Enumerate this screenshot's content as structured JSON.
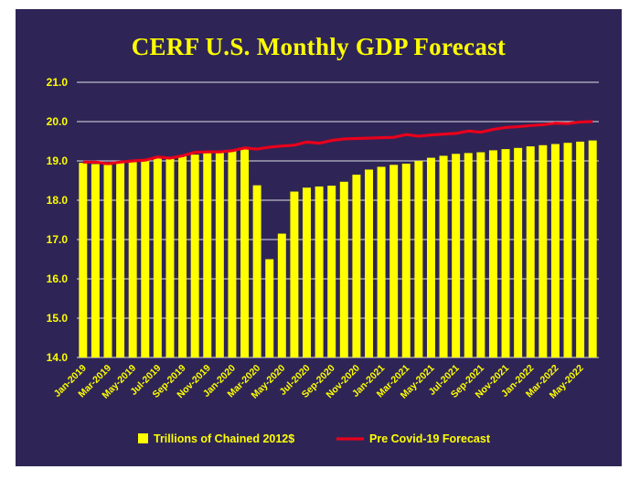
{
  "chart_data": {
    "type": "bar",
    "title": "CERF U.S. Monthly GDP Forecast",
    "xlabel": "",
    "ylabel": "",
    "ylim": [
      14.0,
      21.0
    ],
    "yticks": [
      "14.0",
      "15.0",
      "16.0",
      "17.0",
      "18.0",
      "19.0",
      "20.0",
      "21.0"
    ],
    "grid": true,
    "legend_position": "bottom",
    "colors": {
      "background": "#2e2556",
      "bar": "#ffff00",
      "line": "#e8001c",
      "text": "#ffff00",
      "grid": "#ffffff"
    },
    "categories": [
      "Jan-2019",
      "Feb-2019",
      "Mar-2019",
      "Apr-2019",
      "May-2019",
      "Jun-2019",
      "Jul-2019",
      "Aug-2019",
      "Sep-2019",
      "Oct-2019",
      "Nov-2019",
      "Dec-2019",
      "Jan-2020",
      "Feb-2020",
      "Mar-2020",
      "Apr-2020",
      "May-2020",
      "Jun-2020",
      "Jul-2020",
      "Aug-2020",
      "Sep-2020",
      "Oct-2020",
      "Nov-2020",
      "Dec-2020",
      "Jan-2021",
      "Feb-2021",
      "Mar-2021",
      "Apr-2021",
      "May-2021",
      "Jun-2021",
      "Jul-2021",
      "Aug-2021",
      "Sep-2021",
      "Oct-2021",
      "Nov-2021",
      "Dec-2021",
      "Jan-2022",
      "Feb-2022",
      "Mar-2022",
      "Apr-2022",
      "May-2022",
      "Jun-2022"
    ],
    "series": [
      {
        "name": "Trillions of Chained 2012$",
        "type": "bar",
        "values": [
          18.95,
          18.92,
          18.9,
          18.97,
          19.0,
          19.02,
          19.08,
          19.1,
          19.13,
          19.16,
          19.2,
          19.23,
          19.26,
          19.3,
          18.38,
          16.5,
          17.15,
          18.22,
          18.32,
          18.35,
          18.37,
          18.47,
          18.65,
          18.78,
          18.85,
          18.9,
          18.93,
          19.0,
          19.08,
          19.13,
          19.18,
          19.2,
          19.22,
          19.27,
          19.3,
          19.33,
          19.37,
          19.4,
          19.43,
          19.46,
          19.49,
          19.52
        ]
      },
      {
        "name": "Pre Covid-19 Forecast",
        "type": "line",
        "values": [
          18.97,
          18.97,
          18.93,
          18.97,
          19.0,
          19.02,
          19.1,
          19.07,
          19.13,
          19.22,
          19.23,
          19.23,
          19.26,
          19.33,
          19.3,
          19.35,
          19.38,
          19.4,
          19.48,
          19.45,
          19.52,
          19.56,
          19.57,
          19.58,
          19.59,
          19.6,
          19.67,
          19.63,
          19.66,
          19.68,
          19.7,
          19.76,
          19.73,
          19.8,
          19.85,
          19.87,
          19.9,
          19.92,
          19.96,
          19.95,
          19.99,
          20.0
        ]
      }
    ]
  }
}
